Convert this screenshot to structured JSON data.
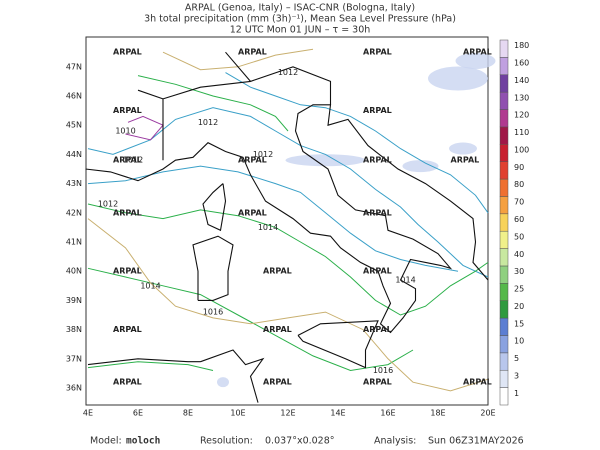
{
  "header": {
    "line1": "ARPAL (Genoa, Italy)  –  ISAC-CNR (Bologna, Italy)",
    "line2": "3h total precipitation (mm (3h)⁻¹), Mean Sea Level Pressure (hPa)",
    "line3": "12 UTC Mon 01 JUN  –  τ = 30h"
  },
  "map": {
    "watermark": "ARPAL",
    "lat_labels": [
      "36N",
      "37N",
      "38N",
      "39N",
      "40N",
      "41N",
      "42N",
      "43N",
      "44N",
      "45N",
      "46N",
      "47N"
    ],
    "lon_labels": [
      "4E",
      "6E",
      "8E",
      "10E",
      "12E",
      "14E",
      "16E",
      "18E",
      "20E"
    ],
    "contour_labels": [
      "1012",
      "1010",
      "1012",
      "1012",
      "1014",
      "1012",
      "1014",
      "1016",
      "1014",
      "1016",
      "1012"
    ]
  },
  "colorbar": {
    "labels": [
      "1",
      "3",
      "5",
      "10",
      "15",
      "20",
      "25",
      "30",
      "40",
      "50",
      "60",
      "70",
      "80",
      "90",
      "100",
      "110",
      "120",
      "130",
      "140",
      "160",
      "180"
    ]
  },
  "footer": {
    "model_label": "Model:",
    "model": "moloch",
    "resolution_label": "Resolution:",
    "resolution": "0.037°x0.028°",
    "analysis_label": "Analysis:",
    "analysis": "Sun 06Z31MAY2026"
  }
}
